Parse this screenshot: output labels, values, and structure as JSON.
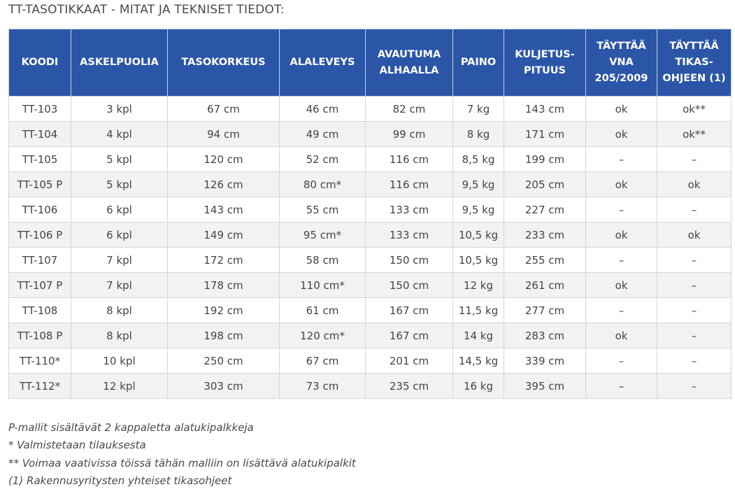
{
  "title": "TT-TASOTIKKAAT - MITAT JA TEKNISET TIEDOT:",
  "table": {
    "headers": [
      "KOODI",
      "ASKELPUOLIA",
      "TASOKORKEUS",
      "ALALEVEYS",
      "AVAUTUMA\nALHAALLA",
      "PAINO",
      "KULJETUS-\nPITUUS",
      "TÄYTTÄÄ\nVNA\n205/2009",
      "TÄYTTÄÄ\nTIKAS-\nOHJEEN (1)"
    ],
    "rows": [
      [
        "TT-103",
        "3 kpl",
        "67 cm",
        "46 cm",
        "82 cm",
        "7 kg",
        "143 cm",
        "ok",
        "ok**"
      ],
      [
        "TT-104",
        "4 kpl",
        "94 cm",
        "49 cm",
        "99 cm",
        "8 kg",
        "171 cm",
        "ok",
        "ok**"
      ],
      [
        "TT-105",
        "5 kpl",
        "120 cm",
        "52 cm",
        "116 cm",
        "8,5 kg",
        "199 cm",
        "–",
        "–"
      ],
      [
        "TT-105 P",
        "5 kpl",
        "126 cm",
        "80 cm*",
        "116 cm",
        "9,5 kg",
        "205 cm",
        "ok",
        "ok"
      ],
      [
        "TT-106",
        "6 kpl",
        "143 cm",
        "55 cm",
        "133 cm",
        "9,5 kg",
        "227 cm",
        "–",
        "–"
      ],
      [
        "TT-106 P",
        "6 kpl",
        "149 cm",
        "95 cm*",
        "133 cm",
        "10,5 kg",
        "233 cm",
        "ok",
        "ok"
      ],
      [
        "TT-107",
        "7 kpl",
        "172 cm",
        "58 cm",
        "150 cm",
        "10,5 kg",
        "255 cm",
        "–",
        "–"
      ],
      [
        "TT-107 P",
        "7 kpl",
        "178 cm",
        "110 cm*",
        "150 cm",
        "12 kg",
        "261 cm",
        "ok",
        "–"
      ],
      [
        "TT-108",
        "8 kpl",
        "192 cm",
        "61 cm",
        "167 cm",
        "11,5 kg",
        "277 cm",
        "–",
        "–"
      ],
      [
        "TT-108 P",
        "8 kpl",
        "198 cm",
        "120 cm*",
        "167 cm",
        "14 kg",
        "283 cm",
        "ok",
        "–"
      ],
      [
        "TT-110*",
        "10 kpl",
        "250 cm",
        "67 cm",
        "201 cm",
        "14,5 kg",
        "339 cm",
        "–",
        "–"
      ],
      [
        "TT-112*",
        "12 kpl",
        "303 cm",
        "73 cm",
        "235 cm",
        "16 kg",
        "395 cm",
        "–",
        "–"
      ]
    ]
  },
  "notes": [
    "P-mallit sisältävät 2 kappaletta alatukipalkkeja",
    "* Valmistetaan tilauksesta",
    "** Voimaa vaativissa töissä tähän malliin on lisättävä alatukipalkit",
    "(1) Rakennusyritysten yhteiset tikasohjeet"
  ]
}
